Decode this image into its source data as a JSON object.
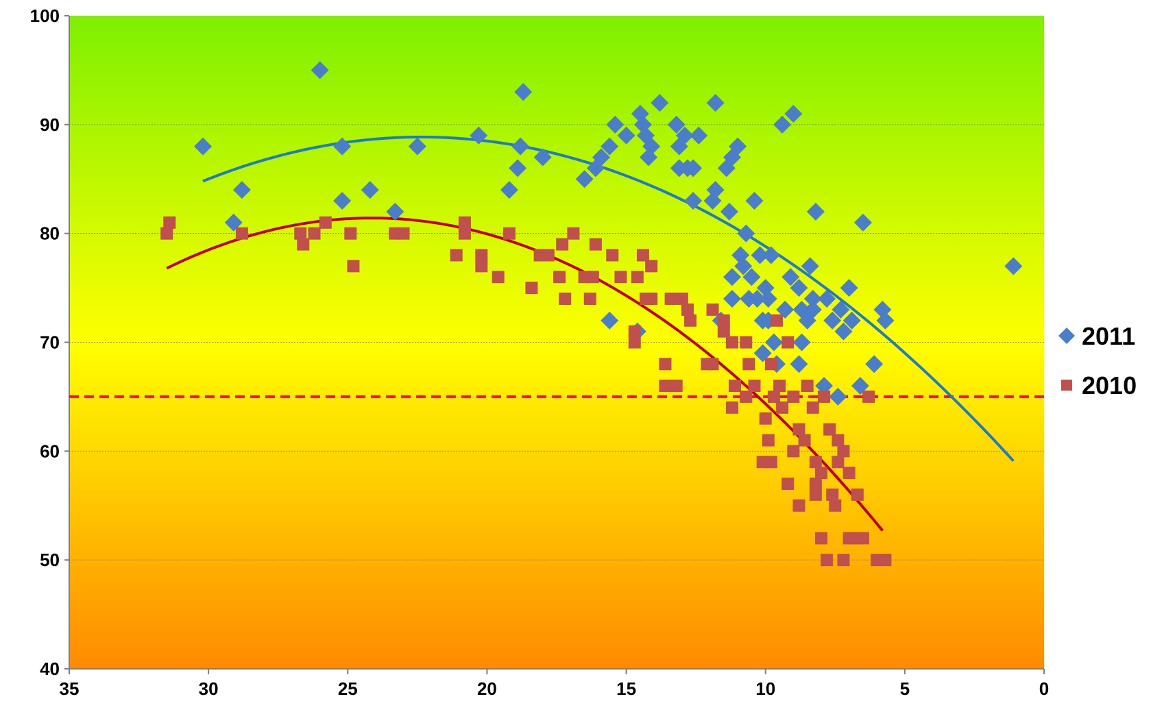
{
  "chart_data": {
    "type": "scatter",
    "title": "",
    "xlabel": "",
    "ylabel": "",
    "xlim": [
      35,
      0
    ],
    "ylim": [
      40,
      100
    ],
    "x_reversed": true,
    "x_ticks": [
      "35",
      "30",
      "25",
      "20",
      "15",
      "10",
      "5",
      "0"
    ],
    "y_ticks": [
      "40",
      "50",
      "60",
      "70",
      "80",
      "90",
      "100"
    ],
    "grid": "horizontal",
    "legend_position": "right",
    "background": {
      "top_color": "#7ef000",
      "middle_color": "#ffff00",
      "bottom_color": "#ff8a00"
    },
    "reference_line": {
      "y": 65,
      "color": "#e8141e",
      "style": "dashed"
    },
    "series": [
      {
        "name": "2011",
        "marker": "diamond",
        "color": "#4a7ec8",
        "trend_color": "#1f7bc4",
        "trendline": {
          "type": "polynomial",
          "order": 2,
          "x_range": [
            30.2,
            1.1
          ],
          "points": [
            [
              30.2,
              84.8
            ],
            [
              23,
              88.2
            ],
            [
              16,
              86.2
            ],
            [
              8,
              74.6
            ],
            [
              1.1,
              59.1
            ]
          ]
        },
        "points": [
          [
            30.2,
            88
          ],
          [
            29.1,
            81
          ],
          [
            28.8,
            84
          ],
          [
            26,
            95
          ],
          [
            25.2,
            88
          ],
          [
            25.2,
            83
          ],
          [
            24.2,
            84
          ],
          [
            23.3,
            82
          ],
          [
            22.5,
            88
          ],
          [
            20.3,
            89
          ],
          [
            19.2,
            84
          ],
          [
            18.9,
            86
          ],
          [
            18.8,
            88
          ],
          [
            18.7,
            93
          ],
          [
            18,
            87
          ],
          [
            16.5,
            85
          ],
          [
            16.1,
            86
          ],
          [
            15.9,
            87
          ],
          [
            15.6,
            88
          ],
          [
            15.6,
            72
          ],
          [
            15.4,
            90
          ],
          [
            15,
            89
          ],
          [
            14.5,
            91
          ],
          [
            14.6,
            71
          ],
          [
            14.4,
            90
          ],
          [
            14.3,
            89
          ],
          [
            14.2,
            87
          ],
          [
            14.1,
            88
          ],
          [
            13.8,
            92
          ],
          [
            13.2,
            90
          ],
          [
            13.1,
            88
          ],
          [
            13.1,
            86
          ],
          [
            12.9,
            89
          ],
          [
            12.8,
            86
          ],
          [
            12.6,
            83
          ],
          [
            12.6,
            86
          ],
          [
            12.4,
            89
          ],
          [
            11.9,
            83
          ],
          [
            11.8,
            92
          ],
          [
            11.8,
            84
          ],
          [
            11.6,
            72
          ],
          [
            11.4,
            86
          ],
          [
            11.3,
            82
          ],
          [
            11.2,
            87
          ],
          [
            11.2,
            76
          ],
          [
            11.2,
            74
          ],
          [
            11,
            88
          ],
          [
            10.9,
            78
          ],
          [
            10.8,
            77
          ],
          [
            10.7,
            80
          ],
          [
            10.6,
            74
          ],
          [
            10.5,
            76
          ],
          [
            10.4,
            83
          ],
          [
            10.3,
            74
          ],
          [
            10.2,
            78
          ],
          [
            10.1,
            72
          ],
          [
            10.1,
            69
          ],
          [
            10,
            75
          ],
          [
            9.9,
            74
          ],
          [
            9.9,
            72
          ],
          [
            9.8,
            78
          ],
          [
            9.7,
            70
          ],
          [
            9.6,
            68
          ],
          [
            9.4,
            90
          ],
          [
            9.3,
            73
          ],
          [
            9,
            91
          ],
          [
            9.1,
            76
          ],
          [
            8.8,
            75
          ],
          [
            8.8,
            68
          ],
          [
            8.7,
            73
          ],
          [
            8.7,
            70
          ],
          [
            8.5,
            72
          ],
          [
            8.4,
            77
          ],
          [
            8.3,
            74
          ],
          [
            8.3,
            73
          ],
          [
            8.2,
            82
          ],
          [
            7.9,
            66
          ],
          [
            7.8,
            74
          ],
          [
            7.6,
            72
          ],
          [
            7.4,
            65
          ],
          [
            7.3,
            73
          ],
          [
            7.2,
            71
          ],
          [
            7,
            75
          ],
          [
            6.9,
            72
          ],
          [
            6.6,
            66
          ],
          [
            6.5,
            81
          ],
          [
            6.1,
            68
          ],
          [
            5.8,
            73
          ],
          [
            5.7,
            72
          ],
          [
            1.1,
            77
          ]
        ]
      },
      {
        "name": "2010",
        "marker": "square",
        "color": "#c0504d",
        "trend_color": "#c00000",
        "trendline": {
          "type": "polynomial",
          "order": 2,
          "x_range": [
            31.5,
            5.8
          ],
          "points": [
            [
              31.5,
              76.8
            ],
            [
              24.5,
              81.2
            ],
            [
              18,
              78.2
            ],
            [
              12,
              68.2
            ],
            [
              5.8,
              52.7
            ]
          ]
        },
        "points": [
          [
            31.5,
            80
          ],
          [
            31.4,
            81
          ],
          [
            28.8,
            80
          ],
          [
            26.7,
            80
          ],
          [
            26.6,
            79
          ],
          [
            26.2,
            80
          ],
          [
            25.8,
            81
          ],
          [
            24.9,
            80
          ],
          [
            24.8,
            77
          ],
          [
            23.3,
            80
          ],
          [
            23,
            80
          ],
          [
            21.1,
            78
          ],
          [
            20.8,
            81
          ],
          [
            20.8,
            80
          ],
          [
            20.2,
            78
          ],
          [
            20.2,
            77
          ],
          [
            19.6,
            76
          ],
          [
            19.2,
            80
          ],
          [
            18.4,
            75
          ],
          [
            18.1,
            78
          ],
          [
            17.8,
            78
          ],
          [
            17.4,
            76
          ],
          [
            17.3,
            79
          ],
          [
            17.2,
            74
          ],
          [
            16.9,
            80
          ],
          [
            16.5,
            76
          ],
          [
            16.3,
            74
          ],
          [
            16.2,
            76
          ],
          [
            16.1,
            79
          ],
          [
            15.5,
            78
          ],
          [
            15.2,
            76
          ],
          [
            14.6,
            76
          ],
          [
            14.7,
            71
          ],
          [
            14.7,
            70
          ],
          [
            14.4,
            78
          ],
          [
            14.3,
            74
          ],
          [
            14.1,
            74
          ],
          [
            14.1,
            77
          ],
          [
            13.6,
            68
          ],
          [
            13.6,
            66
          ],
          [
            13.4,
            74
          ],
          [
            13.2,
            66
          ],
          [
            13,
            74
          ],
          [
            12.8,
            73
          ],
          [
            12.7,
            72
          ],
          [
            12.1,
            68
          ],
          [
            11.9,
            73
          ],
          [
            11.9,
            68
          ],
          [
            11.5,
            71
          ],
          [
            11.5,
            72
          ],
          [
            11.2,
            64
          ],
          [
            11.2,
            70
          ],
          [
            11.1,
            66
          ],
          [
            10.7,
            65
          ],
          [
            10.7,
            70
          ],
          [
            10.6,
            68
          ],
          [
            10.4,
            66
          ],
          [
            10.1,
            59
          ],
          [
            10,
            63
          ],
          [
            9.8,
            68
          ],
          [
            9.9,
            61
          ],
          [
            9.8,
            59
          ],
          [
            9.7,
            65
          ],
          [
            9.6,
            72
          ],
          [
            9.5,
            66
          ],
          [
            9.4,
            64
          ],
          [
            9.2,
            70
          ],
          [
            9.2,
            57
          ],
          [
            9,
            65
          ],
          [
            9,
            60
          ],
          [
            8.8,
            62
          ],
          [
            8.8,
            55
          ],
          [
            8.6,
            61
          ],
          [
            8.5,
            66
          ],
          [
            8.3,
            64
          ],
          [
            8.2,
            59
          ],
          [
            8.2,
            57
          ],
          [
            8.2,
            56
          ],
          [
            8,
            58
          ],
          [
            7.9,
            65
          ],
          [
            8,
            52
          ],
          [
            7.8,
            50
          ],
          [
            7.7,
            62
          ],
          [
            7.6,
            56
          ],
          [
            7.5,
            55
          ],
          [
            7.4,
            61
          ],
          [
            7.4,
            59
          ],
          [
            7.2,
            60
          ],
          [
            7.2,
            50
          ],
          [
            7,
            58
          ],
          [
            7,
            52
          ],
          [
            6.8,
            52
          ],
          [
            6.7,
            56
          ],
          [
            6.5,
            52
          ],
          [
            6.3,
            65
          ],
          [
            6,
            50
          ],
          [
            5.7,
            50
          ]
        ]
      }
    ]
  }
}
